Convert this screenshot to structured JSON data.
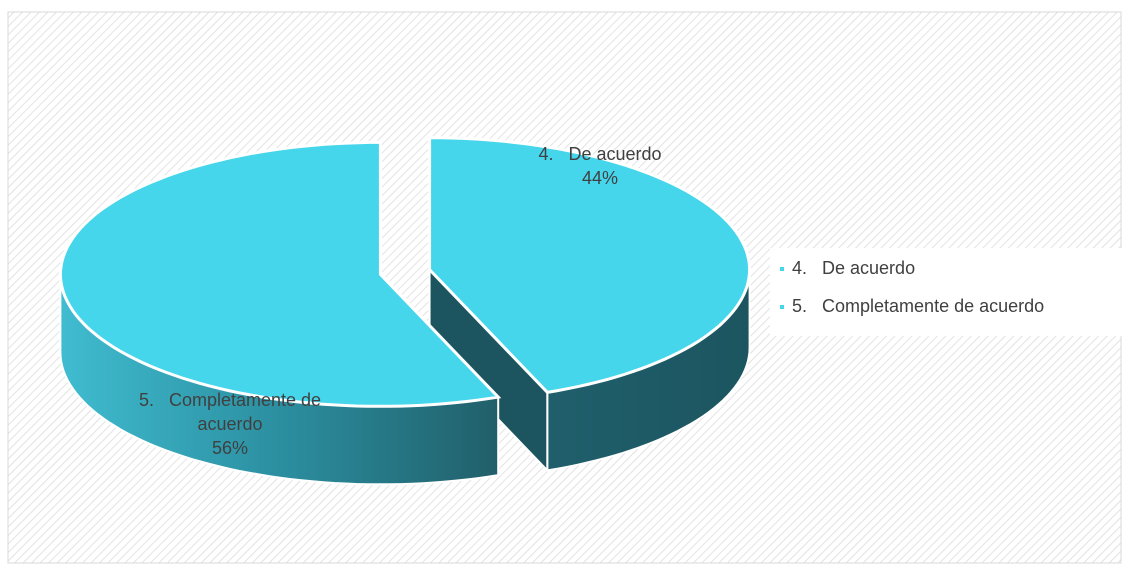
{
  "chart_data": {
    "type": "pie3d",
    "categories": [
      "4.   De acuerdo",
      "5.   Completamente de acuerdo"
    ],
    "values": [
      44,
      56
    ],
    "value_labels": [
      "44%",
      "56%"
    ],
    "color": "#45d6eb",
    "legend": "right"
  }
}
